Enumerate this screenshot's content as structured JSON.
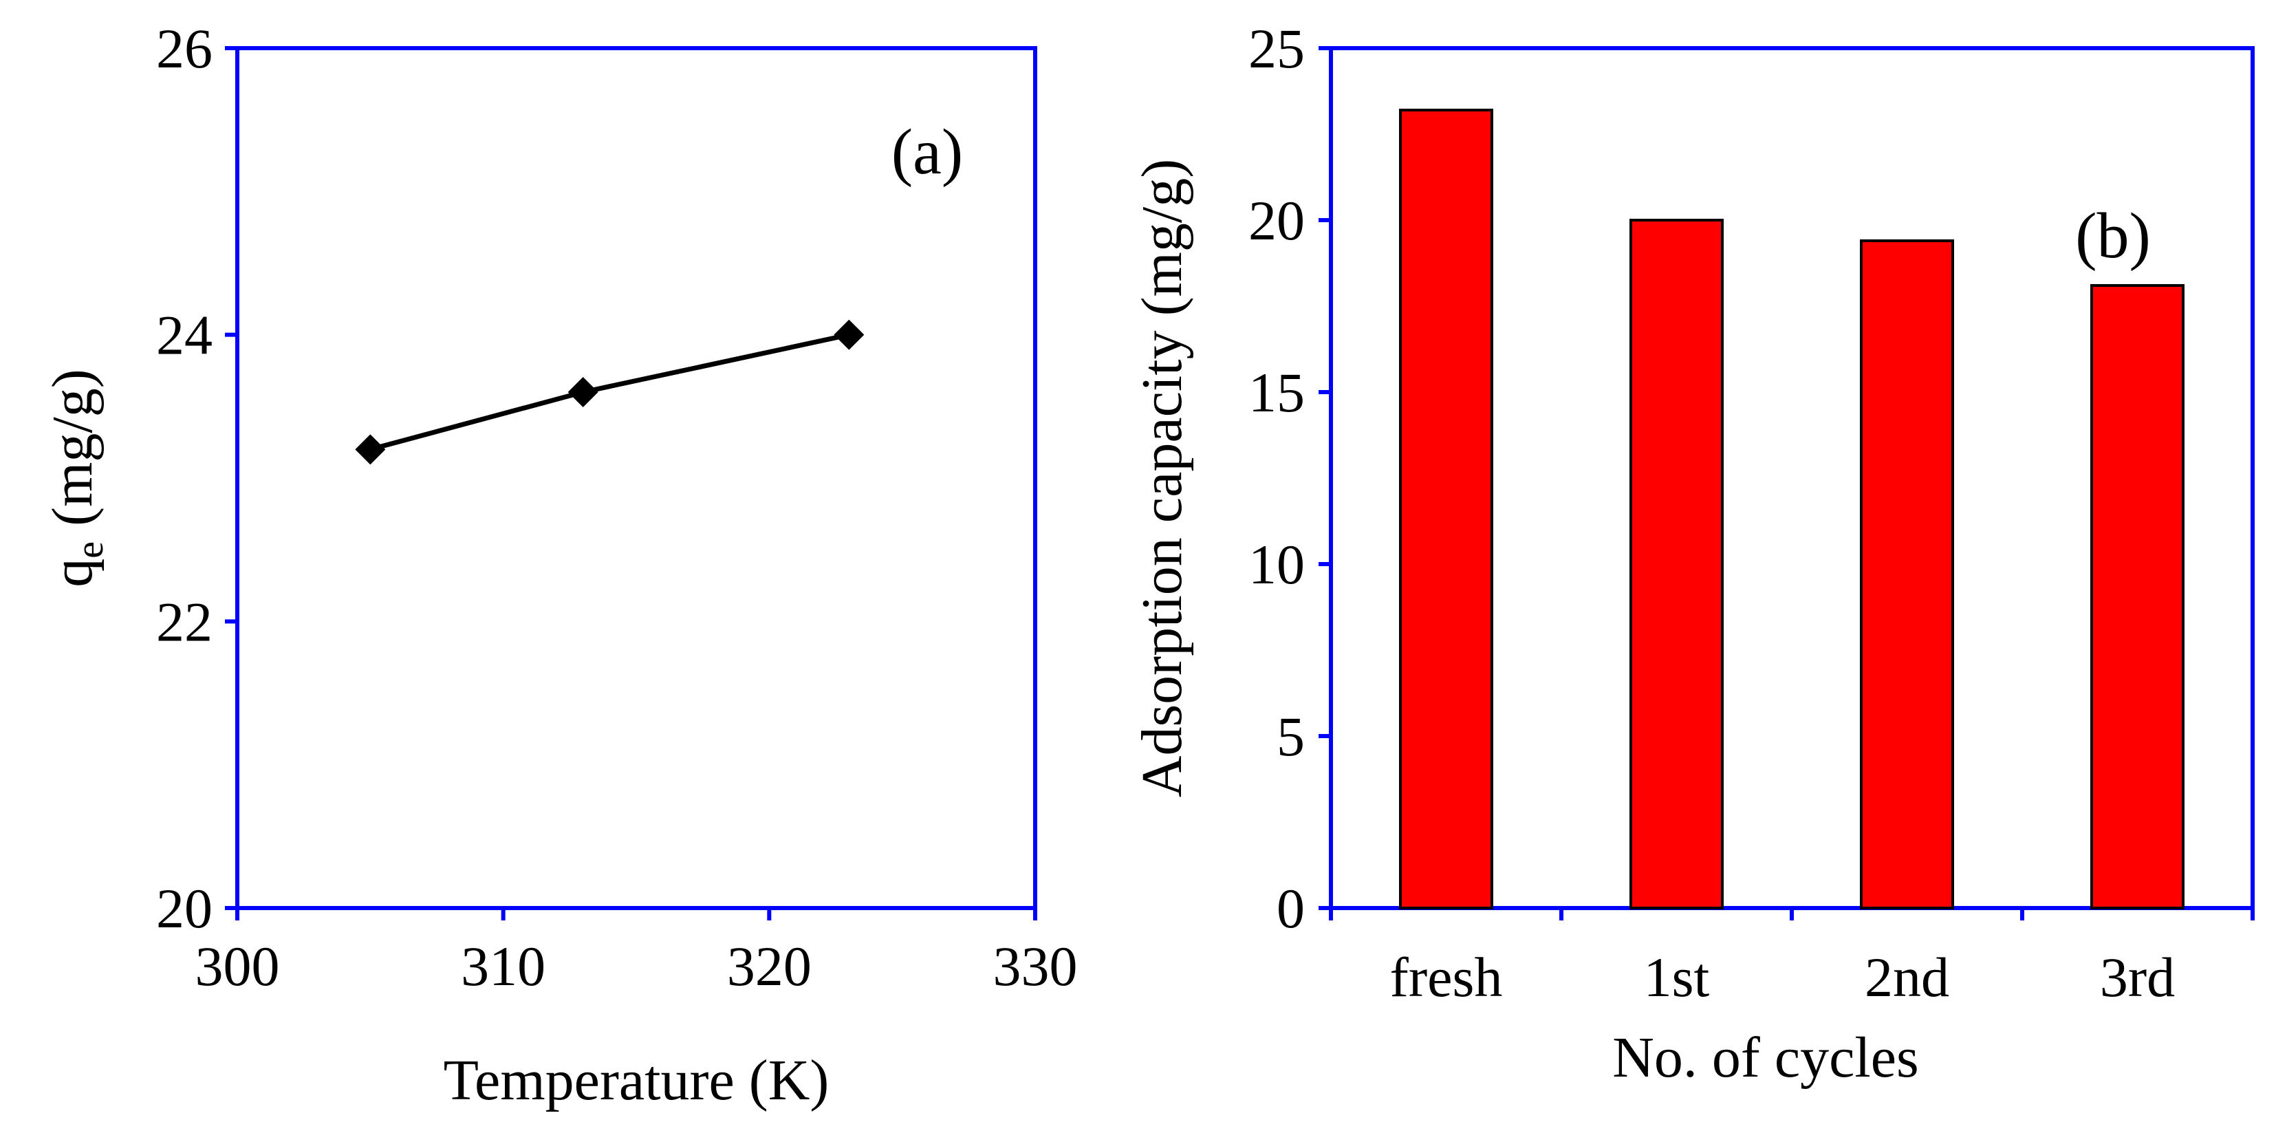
{
  "colors": {
    "axis": "#0000ff",
    "line": "#000000",
    "bar_fill": "#ff0000",
    "bar_edge": "#000000"
  },
  "chart_data": [
    {
      "type": "line",
      "panel_label": "(a)",
      "xlabel": "Temperature (K)",
      "ylabel_main": "q",
      "ylabel_sub": "e",
      "ylabel_unit": "(mg/g)",
      "xlim": [
        300,
        330
      ],
      "ylim": [
        20,
        26
      ],
      "xticks": [
        300,
        310,
        320,
        330
      ],
      "yticks": [
        20,
        22,
        24,
        26
      ],
      "x": [
        305,
        313,
        323
      ],
      "y": [
        23.2,
        23.6,
        24.0
      ],
      "marker": "diamond"
    },
    {
      "type": "bar",
      "panel_label": "(b)",
      "xlabel": "No. of cycles",
      "ylabel": "Adsorption capacity (mg/g)",
      "ylim": [
        0,
        25
      ],
      "yticks": [
        0,
        5,
        10,
        15,
        20,
        25
      ],
      "categories": [
        "fresh",
        "1st",
        "2nd",
        "3rd"
      ],
      "values": [
        23.2,
        20.0,
        19.4,
        18.1
      ]
    }
  ]
}
